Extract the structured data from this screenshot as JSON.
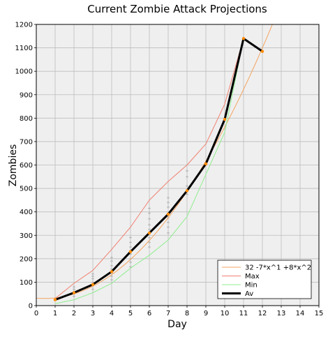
{
  "chart_data": {
    "type": "line",
    "title": "Current Zombie Attack Projections",
    "xlabel": "Day",
    "ylabel": "Zombies",
    "xlim": [
      0,
      15
    ],
    "ylim": [
      0,
      1200
    ],
    "x_ticks": [
      0,
      1,
      2,
      3,
      4,
      5,
      6,
      7,
      8,
      9,
      10,
      11,
      12,
      13,
      14,
      15
    ],
    "y_ticks": [
      0,
      100,
      200,
      300,
      400,
      500,
      600,
      700,
      800,
      900,
      1000,
      1100,
      1200
    ],
    "grid": true,
    "legend_position": "bottom-right",
    "background": "#efefef",
    "series": [
      {
        "name": "32 -7*x^1 +8*x^2",
        "kind": "fit",
        "color": "#f4a460",
        "width": 1,
        "formula": {
          "c0": 32,
          "c1": -7,
          "c2": 8
        },
        "x_from": 0,
        "x_to": 13
      },
      {
        "name": "Max",
        "kind": "line",
        "color": "#f08070",
        "width": 1,
        "x": [
          1,
          2,
          3,
          4,
          5,
          6,
          7,
          8,
          9,
          10,
          11
        ],
        "y": [
          30,
          95,
          150,
          240,
          335,
          450,
          530,
          600,
          690,
          860,
          1140
        ]
      },
      {
        "name": "Min",
        "kind": "line",
        "color": "#90ee90",
        "width": 1,
        "x": [
          1,
          2,
          3,
          4,
          5,
          6,
          7,
          8,
          9,
          10,
          11
        ],
        "y": [
          8,
          25,
          55,
          95,
          160,
          215,
          280,
          380,
          560,
          740,
          1140
        ]
      },
      {
        "name": "Av",
        "kind": "line",
        "color": "#000000",
        "width": 3,
        "marker_color": "#ff8c00",
        "x": [
          1,
          2,
          3,
          4,
          5,
          6,
          7,
          8,
          9,
          10,
          11,
          12
        ],
        "y": [
          25,
          55,
          90,
          145,
          230,
          310,
          390,
          490,
          605,
          795,
          1140,
          1085
        ]
      }
    ],
    "scatter": {
      "color": "#aaaaaa",
      "points": [
        [
          2,
          40
        ],
        [
          2,
          50
        ],
        [
          2,
          60
        ],
        [
          2,
          70
        ],
        [
          2,
          80
        ],
        [
          3,
          70
        ],
        [
          3,
          85
        ],
        [
          3,
          100
        ],
        [
          3,
          115
        ],
        [
          3,
          125
        ],
        [
          3,
          135
        ],
        [
          4,
          110
        ],
        [
          4,
          125
        ],
        [
          4,
          140
        ],
        [
          4,
          155
        ],
        [
          4,
          170
        ],
        [
          4,
          190
        ],
        [
          4,
          205
        ],
        [
          5,
          165
        ],
        [
          5,
          185
        ],
        [
          5,
          200
        ],
        [
          5,
          220
        ],
        [
          5,
          235
        ],
        [
          5,
          250
        ],
        [
          5,
          270
        ],
        [
          5,
          290
        ],
        [
          6,
          250
        ],
        [
          6,
          270
        ],
        [
          6,
          290
        ],
        [
          6,
          310
        ],
        [
          6,
          325
        ],
        [
          6,
          345
        ],
        [
          6,
          370
        ],
        [
          6,
          395
        ],
        [
          6,
          415
        ],
        [
          7,
          310
        ],
        [
          7,
          335
        ],
        [
          7,
          355
        ],
        [
          7,
          375
        ],
        [
          7,
          395
        ],
        [
          7,
          420
        ],
        [
          7,
          440
        ],
        [
          7,
          460
        ],
        [
          8,
          475
        ],
        [
          8,
          510
        ],
        [
          8,
          550
        ],
        [
          8,
          575
        ]
      ]
    }
  }
}
